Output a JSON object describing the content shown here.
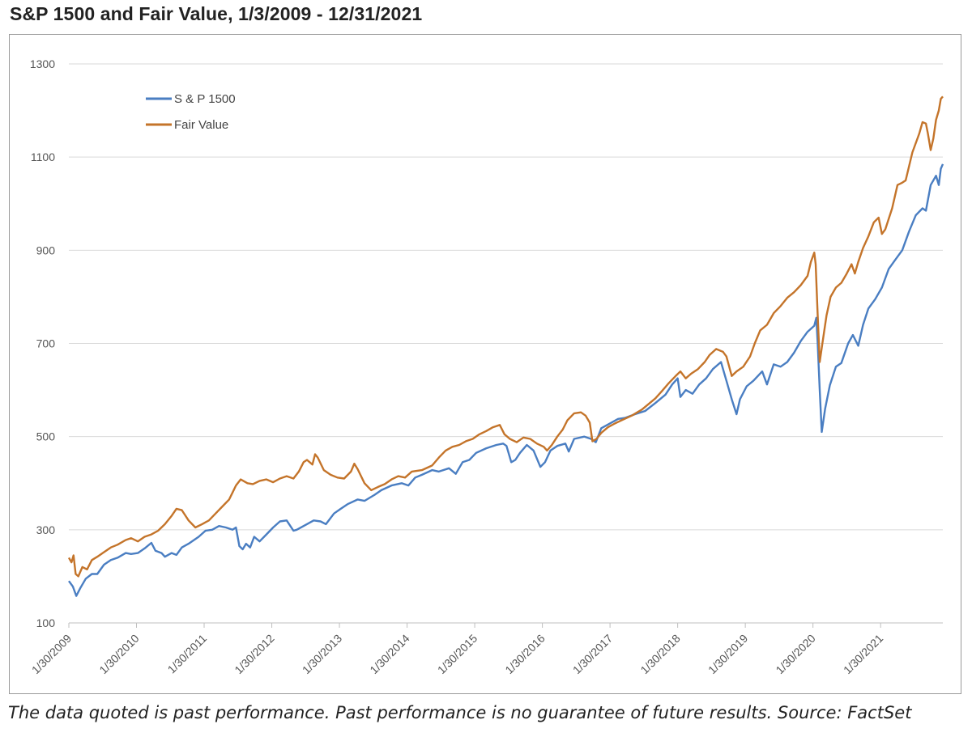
{
  "title": "S&P 1500 and Fair Value, 1/3/2009 - 12/31/2021",
  "footnote": "The data quoted is past performance. Past performance is no guarantee of future results. Source: FactSet",
  "chart_data": {
    "type": "line",
    "title": "S&P 1500 and Fair Value, 1/3/2009 - 12/31/2021",
    "xlabel": "",
    "ylabel": "",
    "ylim": [
      100,
      1300
    ],
    "yticks": [
      100,
      300,
      500,
      700,
      900,
      1100,
      1300
    ],
    "xlim": [
      2009.08,
      2022.0
    ],
    "xtick_labels": [
      "1/30/2009",
      "1/30/2010",
      "1/30/2011",
      "1/30/2012",
      "1/30/2013",
      "1/30/2014",
      "1/30/2015",
      "1/30/2016",
      "1/30/2017",
      "1/30/2018",
      "1/30/2019",
      "1/30/2020",
      "1/30/2021"
    ],
    "grid": "horizontal",
    "legend": "top-left",
    "x_unit": "year",
    "series": [
      {
        "name": "S & P 1500",
        "color": "#4A7EC2",
        "points": [
          [
            2009.08,
            190
          ],
          [
            2009.14,
            178
          ],
          [
            2009.19,
            158
          ],
          [
            2009.25,
            175
          ],
          [
            2009.33,
            195
          ],
          [
            2009.42,
            205
          ],
          [
            2009.5,
            205
          ],
          [
            2009.6,
            225
          ],
          [
            2009.7,
            235
          ],
          [
            2009.8,
            240
          ],
          [
            2009.92,
            250
          ],
          [
            2010.0,
            248
          ],
          [
            2010.1,
            250
          ],
          [
            2010.2,
            260
          ],
          [
            2010.3,
            272
          ],
          [
            2010.36,
            255
          ],
          [
            2010.45,
            250
          ],
          [
            2010.5,
            242
          ],
          [
            2010.6,
            250
          ],
          [
            2010.67,
            246
          ],
          [
            2010.75,
            262
          ],
          [
            2010.85,
            270
          ],
          [
            2011.0,
            285
          ],
          [
            2011.1,
            298
          ],
          [
            2011.2,
            300
          ],
          [
            2011.3,
            308
          ],
          [
            2011.4,
            305
          ],
          [
            2011.5,
            300
          ],
          [
            2011.55,
            305
          ],
          [
            2011.6,
            265
          ],
          [
            2011.65,
            258
          ],
          [
            2011.7,
            270
          ],
          [
            2011.76,
            262
          ],
          [
            2011.82,
            285
          ],
          [
            2011.9,
            275
          ],
          [
            2012.0,
            290
          ],
          [
            2012.1,
            305
          ],
          [
            2012.2,
            318
          ],
          [
            2012.3,
            320
          ],
          [
            2012.4,
            298
          ],
          [
            2012.45,
            300
          ],
          [
            2012.55,
            308
          ],
          [
            2012.7,
            320
          ],
          [
            2012.8,
            318
          ],
          [
            2012.88,
            312
          ],
          [
            2013.0,
            335
          ],
          [
            2013.1,
            345
          ],
          [
            2013.2,
            355
          ],
          [
            2013.35,
            365
          ],
          [
            2013.45,
            362
          ],
          [
            2013.6,
            375
          ],
          [
            2013.7,
            385
          ],
          [
            2013.85,
            395
          ],
          [
            2014.0,
            400
          ],
          [
            2014.1,
            395
          ],
          [
            2014.2,
            412
          ],
          [
            2014.3,
            418
          ],
          [
            2014.45,
            428
          ],
          [
            2014.55,
            425
          ],
          [
            2014.7,
            432
          ],
          [
            2014.8,
            420
          ],
          [
            2014.9,
            445
          ],
          [
            2015.0,
            450
          ],
          [
            2015.1,
            465
          ],
          [
            2015.25,
            475
          ],
          [
            2015.4,
            482
          ],
          [
            2015.5,
            485
          ],
          [
            2015.55,
            480
          ],
          [
            2015.62,
            445
          ],
          [
            2015.68,
            450
          ],
          [
            2015.75,
            465
          ],
          [
            2015.85,
            482
          ],
          [
            2015.95,
            470
          ],
          [
            2016.05,
            435
          ],
          [
            2016.12,
            445
          ],
          [
            2016.2,
            470
          ],
          [
            2016.3,
            480
          ],
          [
            2016.42,
            485
          ],
          [
            2016.47,
            468
          ],
          [
            2016.55,
            495
          ],
          [
            2016.7,
            500
          ],
          [
            2016.8,
            495
          ],
          [
            2016.87,
            488
          ],
          [
            2016.95,
            518
          ],
          [
            2017.1,
            530
          ],
          [
            2017.2,
            538
          ],
          [
            2017.3,
            540
          ],
          [
            2017.45,
            548
          ],
          [
            2017.6,
            555
          ],
          [
            2017.75,
            572
          ],
          [
            2017.9,
            590
          ],
          [
            2018.0,
            612
          ],
          [
            2018.08,
            625
          ],
          [
            2018.12,
            585
          ],
          [
            2018.2,
            600
          ],
          [
            2018.3,
            592
          ],
          [
            2018.4,
            612
          ],
          [
            2018.5,
            625
          ],
          [
            2018.6,
            645
          ],
          [
            2018.72,
            660
          ],
          [
            2018.8,
            620
          ],
          [
            2018.88,
            580
          ],
          [
            2018.95,
            548
          ],
          [
            2019.0,
            580
          ],
          [
            2019.1,
            608
          ],
          [
            2019.2,
            620
          ],
          [
            2019.33,
            640
          ],
          [
            2019.4,
            612
          ],
          [
            2019.5,
            655
          ],
          [
            2019.6,
            650
          ],
          [
            2019.7,
            660
          ],
          [
            2019.8,
            680
          ],
          [
            2019.9,
            705
          ],
          [
            2020.0,
            725
          ],
          [
            2020.1,
            738
          ],
          [
            2020.13,
            755
          ],
          [
            2020.15,
            700
          ],
          [
            2020.18,
            600
          ],
          [
            2020.21,
            510
          ],
          [
            2020.26,
            560
          ],
          [
            2020.33,
            610
          ],
          [
            2020.42,
            650
          ],
          [
            2020.5,
            658
          ],
          [
            2020.6,
            700
          ],
          [
            2020.67,
            718
          ],
          [
            2020.75,
            695
          ],
          [
            2020.82,
            740
          ],
          [
            2020.9,
            775
          ],
          [
            2021.0,
            795
          ],
          [
            2021.1,
            820
          ],
          [
            2021.2,
            860
          ],
          [
            2021.3,
            880
          ],
          [
            2021.4,
            900
          ],
          [
            2021.5,
            940
          ],
          [
            2021.6,
            975
          ],
          [
            2021.7,
            990
          ],
          [
            2021.75,
            985
          ],
          [
            2021.82,
            1040
          ],
          [
            2021.9,
            1060
          ],
          [
            2021.94,
            1040
          ],
          [
            2021.97,
            1075
          ],
          [
            2022.0,
            1085
          ]
        ]
      },
      {
        "name": "Fair Value",
        "color": "#C4742A",
        "points": [
          [
            2009.08,
            240
          ],
          [
            2009.12,
            230
          ],
          [
            2009.15,
            245
          ],
          [
            2009.18,
            205
          ],
          [
            2009.22,
            200
          ],
          [
            2009.28,
            220
          ],
          [
            2009.35,
            215
          ],
          [
            2009.42,
            235
          ],
          [
            2009.5,
            242
          ],
          [
            2009.6,
            252
          ],
          [
            2009.7,
            262
          ],
          [
            2009.8,
            268
          ],
          [
            2009.92,
            278
          ],
          [
            2010.0,
            282
          ],
          [
            2010.1,
            275
          ],
          [
            2010.2,
            285
          ],
          [
            2010.3,
            290
          ],
          [
            2010.4,
            298
          ],
          [
            2010.5,
            312
          ],
          [
            2010.6,
            330
          ],
          [
            2010.67,
            345
          ],
          [
            2010.75,
            342
          ],
          [
            2010.85,
            320
          ],
          [
            2010.95,
            305
          ],
          [
            2011.05,
            312
          ],
          [
            2011.15,
            320
          ],
          [
            2011.25,
            335
          ],
          [
            2011.35,
            350
          ],
          [
            2011.45,
            365
          ],
          [
            2011.5,
            380
          ],
          [
            2011.55,
            395
          ],
          [
            2011.62,
            408
          ],
          [
            2011.72,
            400
          ],
          [
            2011.8,
            398
          ],
          [
            2011.9,
            405
          ],
          [
            2012.0,
            408
          ],
          [
            2012.1,
            402
          ],
          [
            2012.2,
            410
          ],
          [
            2012.3,
            415
          ],
          [
            2012.4,
            410
          ],
          [
            2012.48,
            425
          ],
          [
            2012.55,
            445
          ],
          [
            2012.6,
            450
          ],
          [
            2012.68,
            440
          ],
          [
            2012.72,
            462
          ],
          [
            2012.76,
            455
          ],
          [
            2012.85,
            428
          ],
          [
            2012.95,
            418
          ],
          [
            2013.05,
            412
          ],
          [
            2013.15,
            410
          ],
          [
            2013.25,
            425
          ],
          [
            2013.3,
            442
          ],
          [
            2013.35,
            430
          ],
          [
            2013.45,
            400
          ],
          [
            2013.55,
            385
          ],
          [
            2013.65,
            392
          ],
          [
            2013.75,
            398
          ],
          [
            2013.85,
            408
          ],
          [
            2013.95,
            415
          ],
          [
            2014.05,
            412
          ],
          [
            2014.15,
            425
          ],
          [
            2014.3,
            428
          ],
          [
            2014.45,
            438
          ],
          [
            2014.55,
            455
          ],
          [
            2014.65,
            470
          ],
          [
            2014.75,
            478
          ],
          [
            2014.85,
            482
          ],
          [
            2014.95,
            490
          ],
          [
            2015.05,
            495
          ],
          [
            2015.15,
            505
          ],
          [
            2015.25,
            512
          ],
          [
            2015.35,
            520
          ],
          [
            2015.45,
            525
          ],
          [
            2015.52,
            505
          ],
          [
            2015.6,
            495
          ],
          [
            2015.7,
            488
          ],
          [
            2015.8,
            498
          ],
          [
            2015.9,
            495
          ],
          [
            2016.0,
            485
          ],
          [
            2016.1,
            478
          ],
          [
            2016.15,
            470
          ],
          [
            2016.22,
            482
          ],
          [
            2016.3,
            500
          ],
          [
            2016.38,
            515
          ],
          [
            2016.45,
            535
          ],
          [
            2016.55,
            550
          ],
          [
            2016.65,
            552
          ],
          [
            2016.72,
            545
          ],
          [
            2016.78,
            530
          ],
          [
            2016.82,
            490
          ],
          [
            2016.88,
            495
          ],
          [
            2016.95,
            508
          ],
          [
            2017.05,
            520
          ],
          [
            2017.15,
            528
          ],
          [
            2017.25,
            535
          ],
          [
            2017.4,
            545
          ],
          [
            2017.55,
            558
          ],
          [
            2017.65,
            570
          ],
          [
            2017.75,
            582
          ],
          [
            2017.85,
            598
          ],
          [
            2017.95,
            615
          ],
          [
            2018.05,
            630
          ],
          [
            2018.12,
            640
          ],
          [
            2018.2,
            625
          ],
          [
            2018.28,
            635
          ],
          [
            2018.38,
            645
          ],
          [
            2018.48,
            660
          ],
          [
            2018.55,
            675
          ],
          [
            2018.65,
            688
          ],
          [
            2018.75,
            682
          ],
          [
            2018.8,
            672
          ],
          [
            2018.88,
            630
          ],
          [
            2018.95,
            640
          ],
          [
            2019.05,
            650
          ],
          [
            2019.15,
            672
          ],
          [
            2019.22,
            700
          ],
          [
            2019.3,
            728
          ],
          [
            2019.4,
            740
          ],
          [
            2019.5,
            765
          ],
          [
            2019.6,
            780
          ],
          [
            2019.7,
            798
          ],
          [
            2019.8,
            810
          ],
          [
            2019.9,
            825
          ],
          [
            2020.0,
            845
          ],
          [
            2020.05,
            875
          ],
          [
            2020.1,
            895
          ],
          [
            2020.12,
            870
          ],
          [
            2020.15,
            760
          ],
          [
            2020.18,
            660
          ],
          [
            2020.22,
            700
          ],
          [
            2020.28,
            760
          ],
          [
            2020.34,
            800
          ],
          [
            2020.42,
            820
          ],
          [
            2020.5,
            830
          ],
          [
            2020.58,
            850
          ],
          [
            2020.65,
            870
          ],
          [
            2020.7,
            850
          ],
          [
            2020.75,
            875
          ],
          [
            2020.82,
            905
          ],
          [
            2020.9,
            930
          ],
          [
            2020.98,
            960
          ],
          [
            2021.05,
            970
          ],
          [
            2021.1,
            935
          ],
          [
            2021.15,
            945
          ],
          [
            2021.25,
            990
          ],
          [
            2021.33,
            1040
          ],
          [
            2021.4,
            1045
          ],
          [
            2021.45,
            1050
          ],
          [
            2021.55,
            1110
          ],
          [
            2021.65,
            1150
          ],
          [
            2021.7,
            1175
          ],
          [
            2021.75,
            1172
          ],
          [
            2021.78,
            1150
          ],
          [
            2021.82,
            1115
          ],
          [
            2021.86,
            1140
          ],
          [
            2021.9,
            1180
          ],
          [
            2021.94,
            1200
          ],
          [
            2021.97,
            1225
          ],
          [
            2022.0,
            1230
          ]
        ]
      }
    ]
  }
}
